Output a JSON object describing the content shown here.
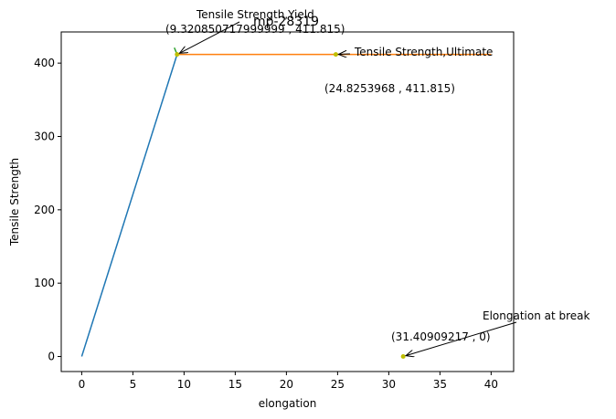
{
  "chart_data": {
    "type": "line",
    "title": "mp-28319",
    "xlabel": "elongation",
    "ylabel": "Tensile Strength",
    "xlim": [
      -2.0,
      42.2
    ],
    "ylim": [
      -20.5,
      442.5
    ],
    "xticks": [
      0,
      5,
      10,
      15,
      20,
      25,
      30,
      35,
      40
    ],
    "yticks": [
      0,
      100,
      200,
      300,
      400
    ],
    "grid": false,
    "colors": {
      "elastic": "#1f77b4",
      "plastic": "#ff7f0e",
      "segment": "#2ca02c",
      "points": "#bfbf00"
    },
    "series": [
      {
        "x": [
          0,
          9.3208507179999
        ],
        "y": [
          0,
          411.815
        ]
      },
      {
        "x": [
          9.3208507179999,
          40.0
        ],
        "y": [
          411.815,
          411.815
        ]
      },
      {
        "x": [
          9.05,
          9.3208507179999
        ],
        "y": [
          421.0,
          411.815
        ]
      }
    ],
    "points": [
      {
        "x": 9.3208507179999,
        "y": 411.815
      },
      {
        "x": 24.8253968,
        "y": 411.815
      },
      {
        "x": 31.40909217,
        "y": 0
      }
    ],
    "annotations": [
      {
        "label": "Tensile Strength,Yield",
        "coord_text": "(9.320850717999999 , 411.815)",
        "x": 9.3208507179999,
        "y": 411.815
      },
      {
        "label": "Tensile Strength,Ultimate",
        "coord_text": "(24.8253968 , 411.815)",
        "x": 24.8253968,
        "y": 411.815
      },
      {
        "label": "Elongation at break",
        "coord_text": "(31.40909217 , 0)",
        "x": 31.40909217,
        "y": 0
      }
    ]
  }
}
